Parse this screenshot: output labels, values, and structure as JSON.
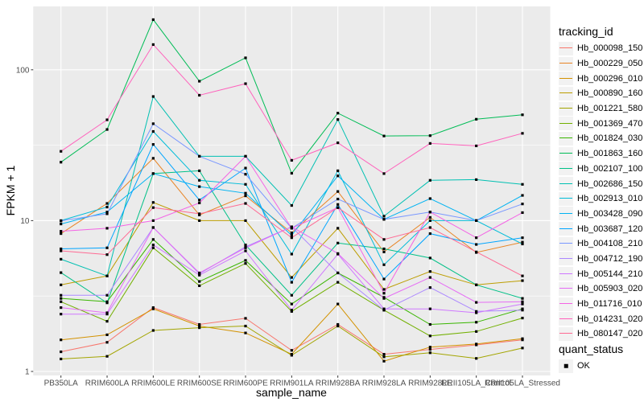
{
  "figure": {
    "background": "#FFFFFF",
    "panel_background": "#EBEBEB",
    "grid_major_color": "#FFFFFF",
    "grid_minor_color": "#FFFFFF",
    "tick_label_color": "#4D4D4D",
    "tick_mark_color": "#333333",
    "axis_title_color": "#000000",
    "point_color": "#000000",
    "legend_key_background": "#F2F2F2"
  },
  "chart_data": {
    "type": "line",
    "title": "",
    "xlabel": "sample_name",
    "ylabel": "FPKM + 1",
    "y_scale": "log10",
    "ylim": [
      0.95,
      260
    ],
    "y_ticks": [
      1,
      10,
      100
    ],
    "y_tick_labels": [
      "1",
      "10",
      "100"
    ],
    "y_minor_ticks": [
      3.162,
      31.62
    ],
    "grid": true,
    "legend_position": "right",
    "categories": [
      "PB350LA",
      "RRIM600LA",
      "RRIM600LE",
      "RRIM600SE",
      "RRIM600PE",
      "RRIM901LA",
      "RRIM928BA",
      "RRIM928LA",
      "RRIM928LE",
      "RRII105LA_Control",
      "RRII105LA_Stressed"
    ],
    "series": [
      {
        "tracking_id": "Hb_000098_150",
        "color": "#F8766D",
        "quant_status": "OK",
        "values": [
          1.35,
          1.56,
          2.65,
          2.05,
          2.25,
          1.38,
          2.05,
          1.3,
          1.4,
          1.5,
          1.62
        ]
      },
      {
        "tracking_id": "Hb_000229_050",
        "color": "#E88526",
        "quant_status": "OK",
        "values": [
          8.2,
          13.0,
          25.9,
          10.9,
          14.6,
          8.3,
          15.6,
          6.2,
          10.5,
          6.15,
          7.2
        ]
      },
      {
        "tracking_id": "Hb_000296_010",
        "color": "#D39200",
        "quant_status": "OK",
        "values": [
          1.62,
          1.75,
          2.6,
          2.0,
          1.8,
          1.3,
          2.8,
          1.17,
          1.45,
          1.52,
          1.65
        ]
      },
      {
        "tracking_id": "Hb_000890_160",
        "color": "#BC9D00",
        "quant_status": "OK",
        "values": [
          3.75,
          4.3,
          13.2,
          10.0,
          10.0,
          4.2,
          8.9,
          3.5,
          4.6,
          3.75,
          4.0
        ]
      },
      {
        "tracking_id": "Hb_001221_580",
        "color": "#A3A500",
        "quant_status": "OK",
        "values": [
          1.21,
          1.26,
          1.87,
          1.95,
          2.0,
          1.28,
          2.0,
          1.25,
          1.33,
          1.22,
          1.43
        ]
      },
      {
        "tracking_id": "Hb_001369_470",
        "color": "#72B000",
        "quant_status": "OK",
        "values": [
          2.9,
          2.15,
          6.6,
          3.7,
          5.2,
          2.5,
          3.9,
          2.55,
          1.72,
          1.84,
          2.26
        ]
      },
      {
        "tracking_id": "Hb_001824_030",
        "color": "#39B600",
        "quant_status": "OK",
        "values": [
          3.05,
          2.9,
          7.5,
          3.95,
          5.45,
          2.8,
          4.5,
          3.1,
          2.05,
          2.12,
          2.6
        ]
      },
      {
        "tracking_id": "Hb_001863_160",
        "color": "#00BC56",
        "quant_status": "OK",
        "values": [
          24.4,
          40.2,
          215.0,
          84.0,
          120.0,
          20.6,
          51.6,
          36.4,
          36.6,
          47.0,
          50.3
        ]
      },
      {
        "tracking_id": "Hb_002107_100",
        "color": "#00C087",
        "quant_status": "OK",
        "values": [
          4.52,
          2.85,
          20.5,
          21.4,
          6.9,
          3.2,
          7.1,
          6.5,
          5.65,
          3.75,
          3.05
        ]
      },
      {
        "tracking_id": "Hb_002686_150",
        "color": "#00C0B2",
        "quant_status": "OK",
        "values": [
          5.55,
          4.3,
          66.5,
          26.7,
          26.7,
          12.6,
          46.8,
          10.7,
          18.5,
          18.7,
          17.4
        ]
      },
      {
        "tracking_id": "Hb_002913_010",
        "color": "#00BCD8",
        "quant_status": "OK",
        "values": [
          10.0,
          12.3,
          39.0,
          18.5,
          17.4,
          6.0,
          21.4,
          5.1,
          10.0,
          10.0,
          7.0
        ]
      },
      {
        "tracking_id": "Hb_003428_090",
        "color": "#00B3F2",
        "quant_status": "OK",
        "values": [
          9.5,
          11.4,
          20.5,
          16.8,
          15.2,
          8.0,
          19.8,
          10.2,
          14.0,
          10.0,
          14.7
        ]
      },
      {
        "tracking_id": "Hb_003687_120",
        "color": "#00A5FF",
        "quant_status": "OK",
        "values": [
          6.5,
          6.6,
          32.0,
          13.7,
          22.3,
          3.9,
          12.8,
          4.1,
          8.2,
          6.95,
          7.7
        ]
      },
      {
        "tracking_id": "Hb_004108_210",
        "color": "#7997FF",
        "quant_status": "OK",
        "values": [
          9.95,
          11.1,
          43.9,
          26.7,
          20.3,
          8.9,
          13.9,
          10.2,
          11.4,
          10.0,
          12.9
        ]
      },
      {
        "tracking_id": "Hb_004712_190",
        "color": "#AC88FF",
        "quant_status": "OK",
        "values": [
          3.2,
          3.2,
          9.0,
          4.45,
          6.7,
          9.1,
          4.5,
          2.55,
          3.6,
          2.5,
          2.55
        ]
      },
      {
        "tracking_id": "Hb_005144_210",
        "color": "#CF78FF",
        "quant_status": "OK",
        "values": [
          2.4,
          2.4,
          6.9,
          4.35,
          6.3,
          2.55,
          6.0,
          2.6,
          2.6,
          2.45,
          2.8
        ]
      },
      {
        "tracking_id": "Hb_005903_020",
        "color": "#E56DF5",
        "quant_status": "OK",
        "values": [
          2.65,
          2.45,
          9.0,
          4.5,
          6.6,
          9.1,
          6.05,
          3.05,
          4.2,
          2.87,
          2.9
        ]
      },
      {
        "tracking_id": "Hb_011716_010",
        "color": "#F464E5",
        "quant_status": "OK",
        "values": [
          8.5,
          8.9,
          10.0,
          13.1,
          26.7,
          8.9,
          12.2,
          3.3,
          11.4,
          7.7,
          11.3
        ]
      },
      {
        "tracking_id": "Hb_014231_020",
        "color": "#FF62BC",
        "quant_status": "OK",
        "values": [
          28.8,
          46.6,
          147.0,
          67.8,
          80.9,
          25.1,
          32.8,
          20.5,
          32.5,
          31.3,
          37.9
        ]
      },
      {
        "tracking_id": "Hb_080147_020",
        "color": "#FF6B94",
        "quant_status": "OK",
        "values": [
          6.3,
          5.95,
          12.2,
          11.1,
          13.0,
          7.7,
          12.2,
          7.5,
          9.0,
          6.2,
          4.3
        ]
      }
    ],
    "legends": [
      {
        "title": "tracking_id",
        "type": "line-color"
      },
      {
        "title": "quant_status",
        "type": "point",
        "items": [
          {
            "label": "OK",
            "marker": "square",
            "color": "#000000"
          }
        ]
      }
    ]
  }
}
